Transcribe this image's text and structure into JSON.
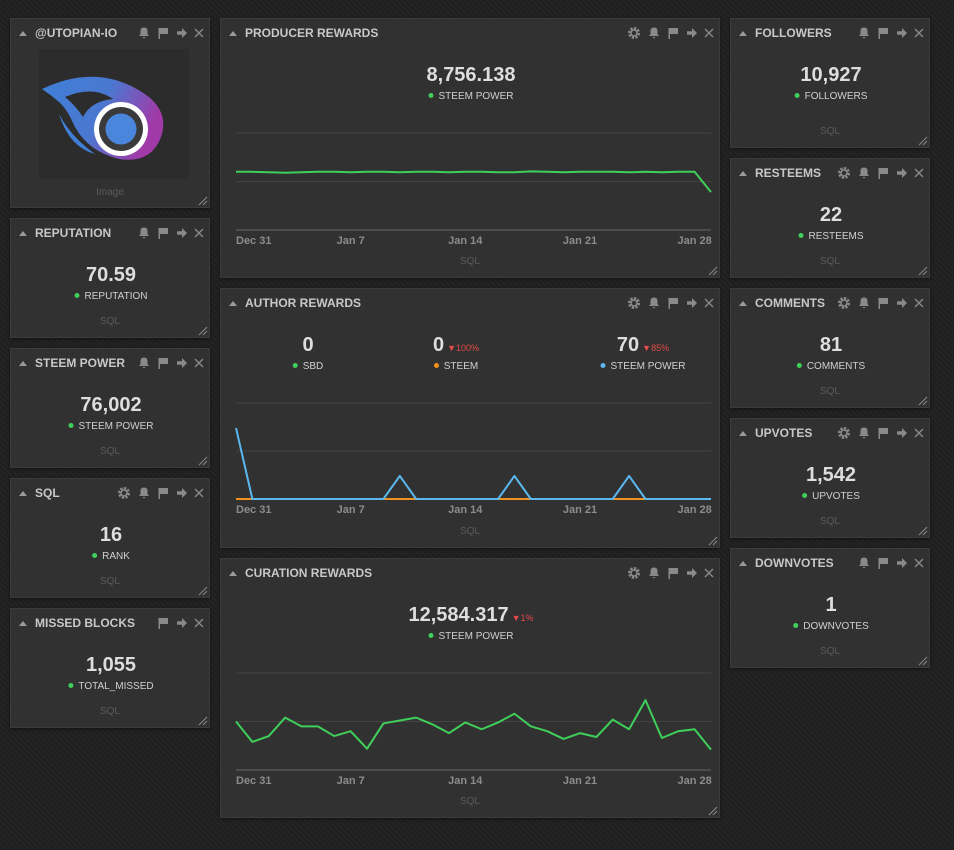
{
  "left": [
    {
      "title": "@UTOPIAN-IO",
      "caption": "Image"
    },
    {
      "title": "REPUTATION",
      "stats": [
        {
          "value": "70.59",
          "label": "REPUTATION",
          "color": "#3fcf5a"
        }
      ],
      "source": "SQL"
    },
    {
      "title": "STEEM POWER",
      "stats": [
        {
          "value": "76,002",
          "label": "STEEM POWER",
          "color": "#3fcf5a"
        }
      ],
      "source": "SQL"
    },
    {
      "title": "SQL",
      "stats": [
        {
          "value": "16",
          "label": "RANK",
          "color": "#3fcf5a"
        }
      ],
      "source": "SQL"
    },
    {
      "title": "MISSED BLOCKS",
      "stats": [
        {
          "value": "1,055",
          "label": "TOTAL_MISSED",
          "color": "#3fcf5a"
        }
      ],
      "source": "SQL"
    }
  ],
  "middle": [
    {
      "title": "PRODUCER REWARDS",
      "stats": [
        {
          "value": "8,756.138",
          "label": "STEEM POWER",
          "color": "#3fcf5a"
        }
      ],
      "source": "SQL",
      "chart": {
        "type": "line",
        "xlim": [
          0,
          29
        ],
        "ylim": [
          0,
          2
        ],
        "yticks": [
          1,
          2
        ],
        "xticks": [
          {
            "value": 0,
            "label": "Dec 31"
          },
          {
            "value": 7,
            "label": "Jan 7"
          },
          {
            "value": 14,
            "label": "Jan 14"
          },
          {
            "value": 21,
            "label": "Jan 21"
          },
          {
            "value": 28,
            "label": "Jan 28"
          }
        ],
        "series": [
          {
            "color": "#3fcf5a",
            "values": [
              1.2,
              1.2,
              1.19,
              1.18,
              1.19,
              1.2,
              1.2,
              1.19,
              1.2,
              1.2,
              1.19,
              1.2,
              1.2,
              1.19,
              1.2,
              1.2,
              1.19,
              1.19,
              1.21,
              1.2,
              1.19,
              1.2,
              1.2,
              1.2,
              1.19,
              1.2,
              1.19,
              1.2,
              1.2,
              0.78
            ]
          }
        ]
      }
    },
    {
      "title": "AUTHOR REWARDS",
      "stats": [
        {
          "value": "0",
          "label": "SBD",
          "color": "#3fcf5a"
        },
        {
          "value": "0",
          "label": "STEEM",
          "color": "#f0901e",
          "change": "▼100%"
        },
        {
          "value": "70",
          "label": "STEEM POWER",
          "color": "#5ab8ee",
          "change": "▼85%"
        }
      ],
      "source": "SQL",
      "chart": {
        "type": "line",
        "xlim": [
          0,
          29
        ],
        "ylim": [
          0,
          100
        ],
        "yticks": [
          50,
          100
        ],
        "xticks": [
          {
            "value": 0,
            "label": "Dec 31"
          },
          {
            "value": 7,
            "label": "Jan 7"
          },
          {
            "value": 14,
            "label": "Jan 14"
          },
          {
            "value": 21,
            "label": "Jan 21"
          },
          {
            "value": 28,
            "label": "Jan 28"
          }
        ],
        "series": [
          {
            "color": "#3fcf5a",
            "values": [
              0,
              0,
              0,
              0,
              0,
              0,
              0,
              0,
              0,
              0,
              0,
              0,
              0,
              0,
              0,
              0,
              0,
              0,
              0,
              0,
              0,
              0,
              0,
              0,
              0,
              0,
              0,
              0,
              0,
              0
            ]
          },
          {
            "color": "#f0901e",
            "values": [
              0,
              0,
              0,
              0,
              0,
              0,
              0,
              0,
              0,
              0,
              0,
              0,
              0,
              0,
              0,
              0,
              0,
              0,
              0,
              0,
              0,
              0,
              0,
              0,
              0,
              0,
              0,
              0,
              0,
              0
            ]
          },
          {
            "color": "#5ab8ee",
            "values": [
              74,
              0,
              0,
              0,
              0,
              0,
              0,
              0,
              0,
              0,
              24,
              0,
              0,
              0,
              0,
              0,
              0,
              24,
              0,
              0,
              0,
              0,
              0,
              0,
              24,
              0,
              0,
              0,
              0,
              0
            ]
          }
        ]
      }
    },
    {
      "title": "CURATION REWARDS",
      "stats": [
        {
          "value": "12,584.317",
          "label": "STEEM POWER",
          "color": "#3fcf5a",
          "change": "▼1%"
        }
      ],
      "source": "SQL",
      "chart": {
        "type": "line",
        "xlim": [
          0,
          29
        ],
        "ylim": [
          0,
          100
        ],
        "yticks": [
          50,
          100
        ],
        "xticks": [
          {
            "value": 0,
            "label": "Dec 31"
          },
          {
            "value": 7,
            "label": "Jan 7"
          },
          {
            "value": 14,
            "label": "Jan 14"
          },
          {
            "value": 21,
            "label": "Jan 21"
          },
          {
            "value": 28,
            "label": "Jan 28"
          }
        ],
        "series": [
          {
            "color": "#3fcf5a",
            "values": [
              50,
              29,
              35,
              54,
              45,
              45,
              35,
              40,
              22,
              48,
              51,
              54,
              47,
              38,
              49,
              42,
              49,
              58,
              45,
              40,
              32,
              38,
              34,
              52,
              42,
              72,
              33,
              40,
              42,
              21
            ]
          }
        ]
      }
    }
  ],
  "right": [
    {
      "title": "FOLLOWERS",
      "stats": [
        {
          "value": "10,927",
          "label": "FOLLOWERS",
          "color": "#3fcf5a"
        }
      ],
      "source": "SQL"
    },
    {
      "title": "RESTEEMS",
      "stats": [
        {
          "value": "22",
          "label": "RESTEEMS",
          "color": "#3fcf5a"
        }
      ],
      "source": "SQL"
    },
    {
      "title": "COMMENTS",
      "stats": [
        {
          "value": "81",
          "label": "COMMENTS",
          "color": "#3fcf5a"
        }
      ],
      "source": "SQL"
    },
    {
      "title": "UPVOTES",
      "stats": [
        {
          "value": "1,542",
          "label": "UPVOTES",
          "color": "#3fcf5a"
        }
      ],
      "source": "SQL"
    },
    {
      "title": "DOWNVOTES",
      "stats": [
        {
          "value": "1",
          "label": "DOWNVOTES",
          "color": "#3fcf5a"
        }
      ],
      "source": "SQL"
    }
  ]
}
